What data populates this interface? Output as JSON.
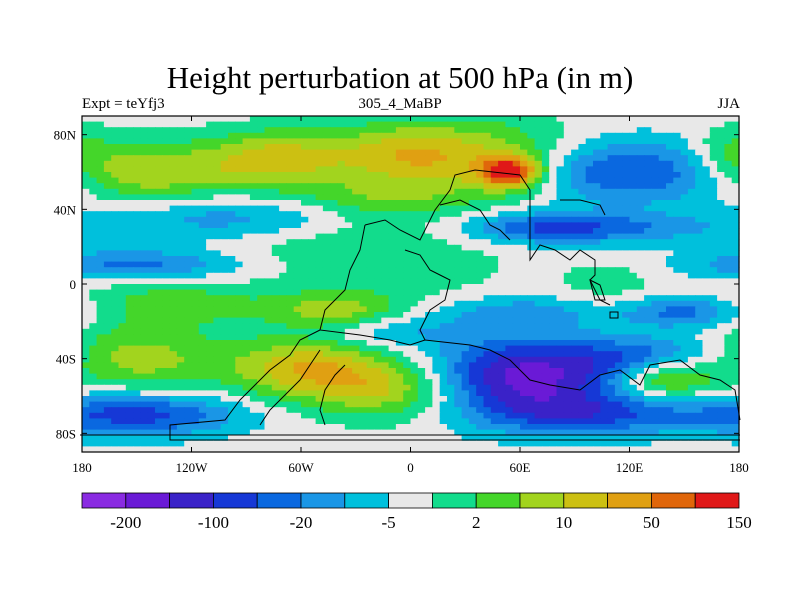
{
  "chart_data": {
    "type": "heatmap",
    "title": "Height perturbation at 500 hPa (in m)",
    "subtitle_left": "Expt = teYfj3",
    "subtitle_center": "305_4_MaBP",
    "subtitle_right": "JJA",
    "x_ticks": [
      "180",
      "120W",
      "60W",
      "0",
      "60E",
      "120E",
      "180"
    ],
    "x_range": [
      -180,
      180
    ],
    "y_ticks": [
      "80N",
      "40N",
      "0",
      "40S",
      "80S"
    ],
    "y_range": [
      -90,
      90
    ],
    "colorbar": {
      "colors": [
        "#8a2be2",
        "#6a1ad6",
        "#3a22c8",
        "#1638d6",
        "#0a68e0",
        "#1a96e6",
        "#00c0dc",
        "#e8e8e8",
        "#12dc8c",
        "#44d62a",
        "#a2d41e",
        "#ccc012",
        "#e0a012",
        "#e0660a",
        "#e01818"
      ],
      "labels": [
        "-200",
        "-100",
        "-20",
        "-5",
        "2",
        "10",
        "50",
        "150"
      ]
    },
    "field": [
      {
        "lon": -150,
        "lat": 60,
        "level": 3,
        "sx": 25,
        "sy": 12
      },
      {
        "lon": -70,
        "lat": 70,
        "level": 3,
        "sx": 30,
        "sy": 10
      },
      {
        "lon": -90,
        "lat": 60,
        "level": 2,
        "sx": 35,
        "sy": 10
      },
      {
        "lon": -100,
        "lat": 35,
        "level": -2,
        "sx": 50,
        "sy": 8
      },
      {
        "lon": -20,
        "lat": 45,
        "level": 2,
        "sx": 30,
        "sy": 8
      },
      {
        "lon": -5,
        "lat": 70,
        "level": 3,
        "sx": 25,
        "sy": 12
      },
      {
        "lon": 45,
        "lat": 65,
        "level": 4,
        "sx": 35,
        "sy": 15
      },
      {
        "lon": 55,
        "lat": 60,
        "level": 6,
        "sx": 12,
        "sy": 6
      },
      {
        "lon": 110,
        "lat": 60,
        "level": -4,
        "sx": 45,
        "sy": 12
      },
      {
        "lon": 175,
        "lat": 70,
        "level": 2,
        "sx": 15,
        "sy": 10
      },
      {
        "lon": 70,
        "lat": 30,
        "level": -3,
        "sx": 30,
        "sy": 6
      },
      {
        "lon": 120,
        "lat": 30,
        "level": -2,
        "sx": 40,
        "sy": 6
      },
      {
        "lon": -50,
        "lat": 20,
        "level": 1,
        "sx": 40,
        "sy": 10
      },
      {
        "lon": 0,
        "lat": 10,
        "level": 1,
        "sx": 40,
        "sy": 15
      },
      {
        "lon": -150,
        "lat": 10,
        "level": -3,
        "sx": 40,
        "sy": 6
      },
      {
        "lon": -130,
        "lat": -10,
        "level": 2,
        "sx": 40,
        "sy": 10
      },
      {
        "lon": -40,
        "lat": -15,
        "level": 3,
        "sx": 25,
        "sy": 8
      },
      {
        "lon": 60,
        "lat": -15,
        "level": -2,
        "sx": 30,
        "sy": 6
      },
      {
        "lon": 150,
        "lat": -15,
        "level": -3,
        "sx": 25,
        "sy": 6
      },
      {
        "lon": 110,
        "lat": 0,
        "level": 1,
        "sx": 20,
        "sy": 10
      },
      {
        "lon": -150,
        "lat": -40,
        "level": 3,
        "sx": 30,
        "sy": 12
      },
      {
        "lon": -60,
        "lat": -45,
        "level": 4,
        "sx": 30,
        "sy": 12
      },
      {
        "lon": -10,
        "lat": -55,
        "level": 4,
        "sx": 30,
        "sy": 12
      },
      {
        "lon": 60,
        "lat": -50,
        "level": -6,
        "sx": 40,
        "sy": 15
      },
      {
        "lon": 140,
        "lat": -50,
        "level": 4,
        "sx": 20,
        "sy": 8
      },
      {
        "lon": 130,
        "lat": -40,
        "level": -3,
        "sx": 30,
        "sy": 8
      },
      {
        "lon": -150,
        "lat": -70,
        "level": -4,
        "sx": 40,
        "sy": 8
      },
      {
        "lon": 100,
        "lat": -70,
        "level": -3,
        "sx": 40,
        "sy": 8
      },
      {
        "lon": -20,
        "lat": -25,
        "level": -2,
        "sx": 30,
        "sy": 6
      }
    ]
  }
}
